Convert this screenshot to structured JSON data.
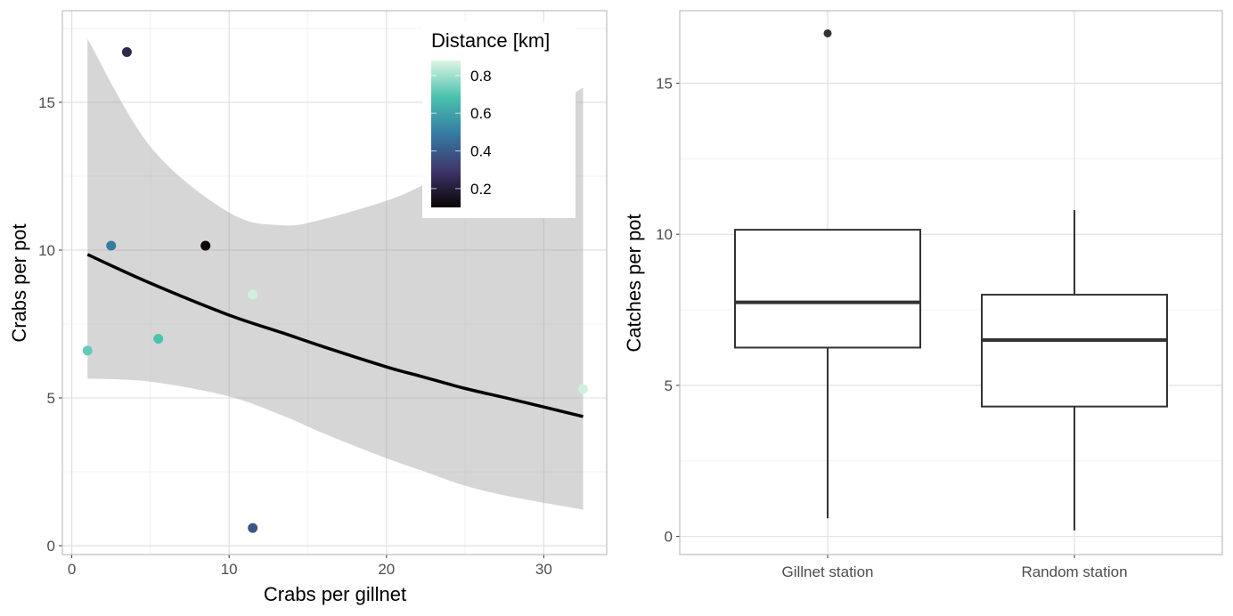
{
  "chart_data": [
    {
      "type": "scatter",
      "xlabel": "Crabs per gillnet",
      "ylabel": "Crabs per pot",
      "xlim": [
        -0.6,
        34
      ],
      "ylim": [
        -0.3,
        18.1
      ],
      "xticks": [
        0,
        10,
        20,
        30
      ],
      "yticks": [
        0,
        5,
        10,
        15
      ],
      "grid": true,
      "points": [
        {
          "x": 3.5,
          "y": 16.7,
          "distance": 0.24
        },
        {
          "x": 2.5,
          "y": 10.15,
          "distance": 0.49
        },
        {
          "x": 8.5,
          "y": 10.15,
          "distance": 0.1
        },
        {
          "x": 11.5,
          "y": 8.5,
          "distance": 0.86
        },
        {
          "x": 1.0,
          "y": 6.6,
          "distance": 0.72
        },
        {
          "x": 5.5,
          "y": 7.0,
          "distance": 0.69
        },
        {
          "x": 11.5,
          "y": 0.6,
          "distance": 0.39
        },
        {
          "x": 32.5,
          "y": 5.3,
          "distance": 0.86
        }
      ],
      "trend": {
        "x": [
          1,
          5,
          10,
          13.4,
          16,
          20,
          22.2,
          25,
          28,
          32.5
        ],
        "fit": [
          9.85,
          8.88,
          7.8,
          7.2,
          6.73,
          6.05,
          5.73,
          5.32,
          4.95,
          4.37
        ],
        "upper": [
          17.15,
          13.5,
          11.27,
          10.84,
          11.05,
          11.67,
          12.17,
          13.0,
          14.0,
          15.5
        ],
        "lower": [
          5.65,
          5.55,
          5.05,
          4.4,
          3.8,
          2.96,
          2.55,
          2.03,
          1.65,
          1.22
        ]
      },
      "legend": {
        "title": "Distance [km]",
        "position": "top-right",
        "range": [
          0.1,
          0.88
        ],
        "ticks": [
          "0.2",
          "0.4",
          "0.6",
          "0.8"
        ],
        "tick_values": [
          0.2,
          0.4,
          0.6,
          0.8
        ],
        "palette": [
          "#0B0405",
          "#3E356B",
          "#357BA2",
          "#49C1AD",
          "#DEF5E5"
        ]
      }
    },
    {
      "type": "box",
      "xlabel": "",
      "ylabel": "Catches per pot",
      "ylim": [
        -0.6,
        17.4
      ],
      "yticks": [
        0,
        5,
        10,
        15
      ],
      "grid": true,
      "categories": [
        "Gillnet station",
        "Random station"
      ],
      "boxes": [
        {
          "min": 0.6,
          "q1": 6.25,
          "median": 7.75,
          "q3": 10.15,
          "max": 10.15,
          "outliers": [
            16.65
          ]
        },
        {
          "min": 0.2,
          "q1": 4.3,
          "median": 6.5,
          "q3": 8.0,
          "max": 10.8,
          "outliers": []
        }
      ]
    }
  ]
}
